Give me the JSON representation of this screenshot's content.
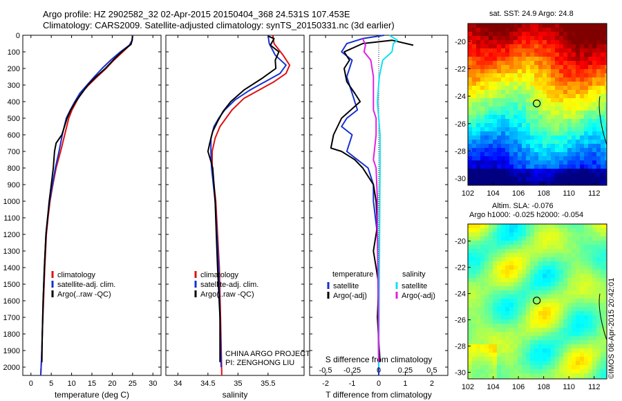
{
  "header": {
    "line1": "Argo profile: HZ 2902582_32 02-Apr-2015 20150404_368 24.531S 107.453E",
    "line2": "Climatology: CARS2009. Satellite-adjusted climatology: synTS_20150331.nc (3d earlier)"
  },
  "colors": {
    "climatology": "#e01010",
    "satellite": "#1530d0",
    "argo": "#000000",
    "sat_salinity": "#10e0f0",
    "argo_salinity": "#e020e0"
  },
  "annotations": {
    "project_line1": "CHINA ARGO PROJECT",
    "project_line2": "PI: ZENGHONG LIU",
    "sst_title": "sat. SST: 24.9 Argo: 24.8",
    "sla_title1": "Altim. SLA: -0.076",
    "sla_title2": "Argo h1000: -0.025 h2000: -0.054",
    "credit": "©IMOS 08-Apr-2015 20:42:01"
  },
  "chart_data": [
    {
      "type": "line",
      "xlabel": "temperature (deg C)",
      "ylabel": "",
      "xlim": [
        -2,
        32
      ],
      "ylim": [
        2050,
        0
      ],
      "xticks": [
        0,
        5,
        10,
        15,
        20,
        25,
        30
      ],
      "yticks": [
        0,
        100,
        200,
        300,
        400,
        500,
        600,
        700,
        800,
        900,
        1000,
        1100,
        1200,
        1300,
        1400,
        1500,
        1600,
        1700,
        1800,
        1900,
        2000
      ],
      "legend": [
        "climatology",
        "satellite-adj. clim.",
        "Argo(..raw -QC)"
      ],
      "legend_position": "lower-right",
      "series": [
        {
          "name": "climatology",
          "color": "#e01010",
          "points": [
            [
              25,
              0
            ],
            [
              24.9,
              30
            ],
            [
              24.3,
              60
            ],
            [
              22.6,
              100
            ],
            [
              20.4,
              150
            ],
            [
              18.5,
              200
            ],
            [
              16.3,
              250
            ],
            [
              14.2,
              300
            ],
            [
              12.3,
              350
            ],
            [
              11.2,
              400
            ],
            [
              10.1,
              450
            ],
            [
              9.3,
              500
            ],
            [
              8.3,
              600
            ],
            [
              7.3,
              700
            ],
            [
              6.2,
              800
            ],
            [
              5.4,
              900
            ],
            [
              4.7,
              1000
            ],
            [
              4.2,
              1100
            ],
            [
              3.8,
              1200
            ],
            [
              3.4,
              1400
            ],
            [
              3.1,
              1600
            ],
            [
              2.8,
              1800
            ],
            [
              2.6,
              1950
            ],
            [
              2.4,
              2050
            ]
          ]
        },
        {
          "name": "satellite-adj. clim.",
          "color": "#1530d0",
          "points": [
            [
              25,
              0
            ],
            [
              24.9,
              30
            ],
            [
              24.2,
              60
            ],
            [
              22.0,
              100
            ],
            [
              19.6,
              150
            ],
            [
              17.5,
              200
            ],
            [
              15.6,
              250
            ],
            [
              13.8,
              300
            ],
            [
              12.0,
              350
            ],
            [
              10.8,
              400
            ],
            [
              9.7,
              450
            ],
            [
              8.7,
              500
            ],
            [
              7.7,
              600
            ],
            [
              6.9,
              700
            ],
            [
              6.0,
              800
            ],
            [
              5.3,
              900
            ],
            [
              4.6,
              1000
            ],
            [
              4.1,
              1100
            ],
            [
              3.7,
              1200
            ],
            [
              3.3,
              1400
            ],
            [
              3.0,
              1600
            ],
            [
              2.8,
              1800
            ],
            [
              2.6,
              1950
            ],
            [
              2.4,
              2050
            ]
          ]
        },
        {
          "name": "Argo(..raw -QC)",
          "color": "#000000",
          "points": [
            [
              25.0,
              5
            ],
            [
              24.9,
              30
            ],
            [
              24.6,
              55
            ],
            [
              22.3,
              100
            ],
            [
              20.2,
              150
            ],
            [
              18.3,
              200
            ],
            [
              16.0,
              250
            ],
            [
              14.0,
              300
            ],
            [
              12.5,
              350
            ],
            [
              11.0,
              400
            ],
            [
              9.8,
              450
            ],
            [
              8.9,
              500
            ],
            [
              7.6,
              600
            ],
            [
              6.2,
              650
            ],
            [
              5.8,
              700
            ],
            [
              5.5,
              800
            ],
            [
              5.0,
              900
            ],
            [
              4.5,
              1000
            ],
            [
              4.1,
              1100
            ],
            [
              3.7,
              1200
            ],
            [
              3.3,
              1400
            ],
            [
              3.0,
              1600
            ],
            [
              2.8,
              1800
            ],
            [
              2.7,
              1970
            ]
          ]
        }
      ]
    },
    {
      "type": "line",
      "xlabel": "salinity",
      "ylabel": "",
      "xlim": [
        33.8,
        36.1
      ],
      "ylim": [
        2050,
        0
      ],
      "xticks": [
        34,
        34.5,
        35,
        35.5
      ],
      "legend": [
        "climatology",
        "satellite-adj. clim.",
        "Argo(..raw -QC)"
      ],
      "legend_position": "lower-right",
      "series": [
        {
          "name": "climatology",
          "color": "#e01010",
          "points": [
            [
              35.58,
              0
            ],
            [
              35.6,
              50
            ],
            [
              35.75,
              120
            ],
            [
              35.86,
              180
            ],
            [
              35.8,
              230
            ],
            [
              35.6,
              280
            ],
            [
              35.35,
              330
            ],
            [
              35.1,
              380
            ],
            [
              34.9,
              450
            ],
            [
              34.8,
              500
            ],
            [
              34.7,
              550
            ],
            [
              34.62,
              620
            ],
            [
              34.57,
              700
            ],
            [
              34.57,
              800
            ],
            [
              34.6,
              900
            ],
            [
              34.63,
              1000
            ],
            [
              34.66,
              1200
            ],
            [
              34.69,
              1400
            ],
            [
              34.71,
              1700
            ],
            [
              34.73,
              2050
            ]
          ]
        },
        {
          "name": "satellite-adj. clim.",
          "color": "#1530d0",
          "points": [
            [
              35.5,
              0
            ],
            [
              35.52,
              50
            ],
            [
              35.62,
              120
            ],
            [
              35.8,
              180
            ],
            [
              35.7,
              230
            ],
            [
              35.45,
              280
            ],
            [
              35.2,
              330
            ],
            [
              34.95,
              390
            ],
            [
              34.78,
              450
            ],
            [
              34.68,
              500
            ],
            [
              34.6,
              550
            ],
            [
              34.55,
              620
            ],
            [
              34.55,
              700
            ],
            [
              34.56,
              800
            ],
            [
              34.59,
              900
            ],
            [
              34.62,
              1000
            ],
            [
              34.65,
              1200
            ],
            [
              34.68,
              1400
            ],
            [
              34.7,
              1700
            ],
            [
              34.72,
              2000
            ]
          ]
        },
        {
          "name": "Argo(..raw -QC)",
          "color": "#000000",
          "points": [
            [
              35.5,
              5
            ],
            [
              35.6,
              20
            ],
            [
              35.54,
              60
            ],
            [
              35.68,
              100
            ],
            [
              35.62,
              150
            ],
            [
              35.63,
              200
            ],
            [
              35.4,
              260
            ],
            [
              35.1,
              330
            ],
            [
              34.88,
              400
            ],
            [
              34.75,
              460
            ],
            [
              34.66,
              520
            ],
            [
              34.58,
              580
            ],
            [
              34.53,
              650
            ],
            [
              34.5,
              700
            ],
            [
              34.55,
              760
            ],
            [
              34.58,
              800
            ],
            [
              34.6,
              900
            ],
            [
              34.62,
              1000
            ],
            [
              34.64,
              1200
            ],
            [
              34.66,
              1400
            ],
            [
              34.7,
              1700
            ],
            [
              34.7,
              1970
            ]
          ]
        }
      ]
    },
    {
      "type": "line",
      "xlabel": "T difference from climatology",
      "xlabel_top": "S difference from climatology",
      "xlim": [
        -2.6,
        2.6
      ],
      "ylim": [
        2050,
        0
      ],
      "xticks": [
        -2,
        -1,
        0,
        1,
        2
      ],
      "top_xtick_labels": [
        "-0.5",
        "-0.25",
        "0",
        "0.25",
        "0.5"
      ],
      "legend_headers": [
        "temperature",
        "salinity"
      ],
      "legend": [
        "satellite",
        "Argo(-adj)",
        "satellite",
        "Argo(-adj)"
      ],
      "legend_position": "lower-center",
      "series": [
        {
          "name": "satellite",
          "quantity": "temperature",
          "color": "#1530d0",
          "points": [
            [
              0.2,
              0
            ],
            [
              -0.6,
              20
            ],
            [
              -1.2,
              50
            ],
            [
              -1.4,
              100
            ],
            [
              -1.0,
              150
            ],
            [
              -1.2,
              250
            ],
            [
              -1.0,
              350
            ],
            [
              -0.8,
              450
            ],
            [
              -1.2,
              500
            ],
            [
              -1.4,
              550
            ],
            [
              -1.0,
              600
            ],
            [
              -1.2,
              700
            ],
            [
              -0.4,
              800
            ],
            [
              -0.2,
              900
            ],
            [
              -0.2,
              1000
            ],
            [
              -0.05,
              1200
            ],
            [
              -0.02,
              1600
            ],
            [
              0,
              2050
            ]
          ]
        },
        {
          "name": "Argo(-adj)",
          "quantity": "temperature",
          "color": "#000000",
          "points": [
            [
              1.3,
              60
            ],
            [
              0.5,
              30
            ],
            [
              -0.6,
              50
            ],
            [
              -1.3,
              100
            ],
            [
              -1.1,
              150
            ],
            [
              -1.3,
              200
            ],
            [
              -1.2,
              280
            ],
            [
              -0.9,
              350
            ],
            [
              -0.7,
              400
            ],
            [
              -1.4,
              500
            ],
            [
              -1.7,
              600
            ],
            [
              -1.8,
              680
            ],
            [
              -1.4,
              700
            ],
            [
              -0.9,
              750
            ],
            [
              -0.6,
              800
            ],
            [
              -0.2,
              900
            ],
            [
              -0.1,
              1000
            ],
            [
              -0.05,
              1150
            ],
            [
              -0.2,
              1300
            ],
            [
              -0.1,
              1400
            ],
            [
              0,
              1500
            ],
            [
              -0.05,
              1700
            ],
            [
              0.05,
              1970
            ]
          ]
        },
        {
          "name": "satellite",
          "quantity": "salinity",
          "color": "#10e0f0",
          "points": [
            [
              0.4,
              0
            ],
            [
              0.7,
              30
            ],
            [
              0.55,
              50
            ],
            [
              0.5,
              100
            ],
            [
              0.15,
              150
            ],
            [
              0.02,
              250
            ],
            [
              -0.05,
              400
            ],
            [
              0,
              500
            ],
            [
              0.05,
              600
            ],
            [
              0.05,
              700
            ],
            [
              0.05,
              800
            ],
            [
              0.04,
              1000
            ],
            [
              0.02,
              1500
            ],
            [
              0,
              2000
            ]
          ]
        },
        {
          "name": "Argo(-adj)",
          "quantity": "salinity",
          "color": "#e020e0",
          "points": [
            [
              -0.6,
              20
            ],
            [
              -0.5,
              60
            ],
            [
              -0.55,
              100
            ],
            [
              -0.3,
              150
            ],
            [
              -0.2,
              250
            ],
            [
              -0.2,
              350
            ],
            [
              -0.2,
              450
            ],
            [
              -0.1,
              500
            ],
            [
              -0.1,
              600
            ],
            [
              -0.2,
              750
            ],
            [
              -0.1,
              800
            ],
            [
              -0.05,
              1000
            ],
            [
              -0.05,
              1200
            ],
            [
              -0.02,
              1500
            ],
            [
              0,
              1970
            ]
          ]
        }
      ]
    },
    {
      "type": "heatmap",
      "title": "sat. SST: 24.9 Argo: 24.8",
      "xlim": [
        102,
        113
      ],
      "ylim": [
        -30.5,
        -18.7
      ],
      "xticks": [
        102,
        104,
        106,
        108,
        110,
        112
      ],
      "yticks": [
        -20,
        -22,
        -24,
        -26,
        -28,
        -30
      ],
      "float_position": [
        107.453,
        -24.531
      ],
      "color_scale": "blue (cool) to dark red (warm), warm to the north-east"
    },
    {
      "type": "heatmap",
      "title": "Altim. SLA: -0.076",
      "subtitle": "Argo h1000: -0.025 h2000: -0.054",
      "xlim": [
        102,
        113
      ],
      "ylim": [
        -30.5,
        -18.7
      ],
      "xticks": [
        102,
        104,
        106,
        108,
        110,
        112
      ],
      "yticks": [
        -20,
        -22,
        -24,
        -26,
        -28,
        -30
      ],
      "float_position": [
        107.453,
        -24.531
      ],
      "color_scale": "mostly green with yellow patches"
    }
  ]
}
